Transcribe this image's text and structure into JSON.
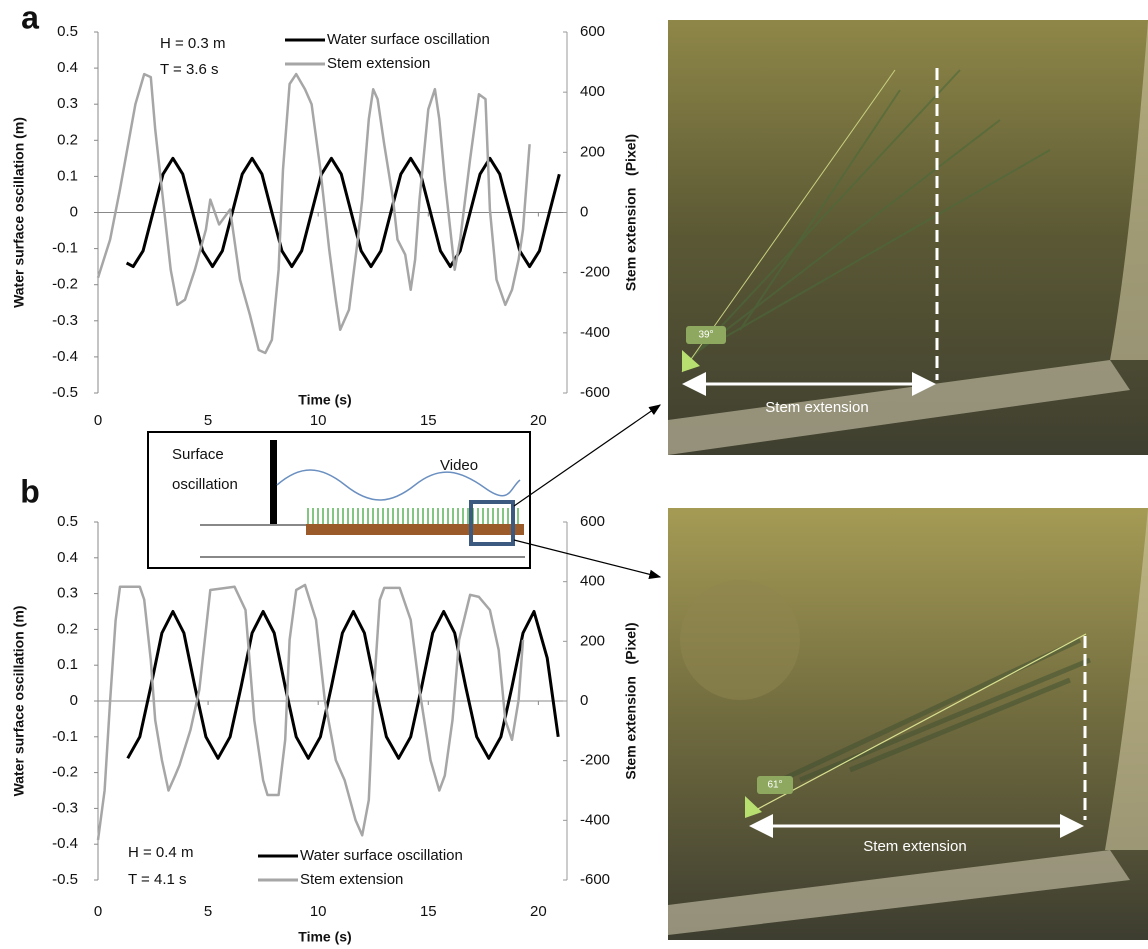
{
  "chart_data": [
    {
      "type": "line",
      "label": "a",
      "xlabel": "Time (s)",
      "ylabel": "Water surface oscillation (m)",
      "y2label": "Stem extension   (Pixel)",
      "annotations": [
        "H = 0.3 m",
        "T = 3.6 s"
      ],
      "legend": "top",
      "xlim": [
        0,
        21.3
      ],
      "xticks": [
        0,
        5,
        10,
        15,
        20
      ],
      "ylim": [
        -0.5,
        0.5
      ],
      "yticks": [
        -0.5,
        -0.4,
        -0.3,
        -0.2,
        -0.1,
        0,
        0.1,
        0.2,
        0.3,
        0.4,
        0.5
      ],
      "y2lim": [
        -600,
        600
      ],
      "y2ticks": [
        -600,
        -400,
        -200,
        0,
        200,
        400,
        600
      ],
      "series": [
        {
          "name": "Water surface oscillation",
          "color": "#000000",
          "x": [
            1.3,
            1.6,
            2.05,
            2.5,
            2.95,
            3.4,
            3.85,
            4.3,
            4.75,
            5.2,
            5.65,
            6.1,
            6.55,
            7,
            7.45,
            7.9,
            8.35,
            8.8,
            9.25,
            9.7,
            10.15,
            10.6,
            11.05,
            11.5,
            11.95,
            12.4,
            12.85,
            13.3,
            13.75,
            14.2,
            14.65,
            15.1,
            15.55,
            16,
            16.45,
            16.9,
            17.35,
            17.8,
            18.25,
            18.7,
            19.15,
            19.6,
            20.05,
            20.5,
            20.95
          ],
          "values": [
            -0.14,
            -0.15,
            -0.106,
            0,
            0.106,
            0.15,
            0.106,
            0,
            -0.106,
            -0.15,
            -0.106,
            0,
            0.106,
            0.15,
            0.106,
            0,
            -0.106,
            -0.15,
            -0.106,
            0,
            0.106,
            0.15,
            0.106,
            0,
            -0.106,
            -0.15,
            -0.106,
            0,
            0.106,
            0.15,
            0.106,
            0,
            -0.106,
            -0.15,
            -0.106,
            0,
            0.106,
            0.15,
            0.106,
            0,
            -0.106,
            -0.15,
            -0.106,
            0,
            0.106
          ]
        },
        {
          "name": "Stem extension",
          "color": "#a6a6a6",
          "axis": "y2",
          "x": [
            0,
            0.55,
            1.0,
            1.7,
            2.1,
            2.4,
            2.6,
            3.0,
            3.3,
            3.6,
            3.95,
            4.4,
            4.9,
            5.1,
            5.5,
            6.0,
            6.45,
            6.9,
            7.3,
            7.6,
            7.9,
            8.2,
            8.4,
            8.7,
            9.0,
            9.4,
            9.7,
            10.1,
            10.5,
            10.8,
            11.0,
            11.4,
            11.8,
            12.0,
            12.3,
            12.5,
            12.7,
            13.0,
            13.4,
            13.6,
            13.95,
            14.2,
            14.4,
            14.6,
            15.0,
            15.3,
            15.5,
            15.75,
            16.0,
            16.2,
            16.45,
            16.9,
            17.3,
            17.6,
            17.8,
            18.1,
            18.5,
            18.8,
            19.1,
            19.3,
            19.6
          ],
          "values": [
            -217,
            -90,
            77,
            360,
            460,
            450,
            277,
            10,
            -190,
            -307,
            -290,
            -190,
            -57,
            43,
            -40,
            10,
            -223,
            -340,
            -457,
            -467,
            -423,
            -190,
            143,
            427,
            460,
            410,
            360,
            143,
            -123,
            -290,
            -390,
            -323,
            -90,
            43,
            310,
            410,
            377,
            227,
            43,
            -90,
            -140,
            -257,
            -157,
            43,
            343,
            410,
            310,
            110,
            -57,
            -190,
            -90,
            177,
            393,
            377,
            10,
            -223,
            -307,
            -257,
            -157,
            -57,
            227
          ]
        }
      ]
    },
    {
      "type": "line",
      "label": "b",
      "xlabel": "Time (s)",
      "ylabel": "Water surface oscillation (m)",
      "y2label": "Stem extension   (Pixel)",
      "annotations": [
        "H = 0.4 m",
        "T = 4.1 s"
      ],
      "legend": "bottom",
      "xlim": [
        0,
        21.3
      ],
      "xticks": [
        0,
        5,
        10,
        15,
        20
      ],
      "ylim": [
        -0.5,
        0.5
      ],
      "yticks": [
        -0.5,
        -0.4,
        -0.3,
        -0.2,
        -0.1,
        0,
        0.1,
        0.2,
        0.3,
        0.4,
        0.5
      ],
      "y2lim": [
        -600,
        600
      ],
      "y2ticks": [
        -600,
        -400,
        -200,
        0,
        200,
        400,
        600
      ],
      "series": [
        {
          "name": "Water surface oscillation",
          "color": "#000000",
          "x": [
            1.35,
            1.9,
            2.4,
            2.9,
            3.4,
            3.9,
            4.4,
            4.9,
            5.45,
            6.0,
            6.5,
            7.0,
            7.5,
            8.0,
            8.5,
            9.0,
            9.55,
            10.1,
            10.6,
            11.1,
            11.6,
            12.1,
            12.6,
            13.1,
            13.65,
            14.2,
            14.7,
            15.2,
            15.7,
            16.2,
            16.7,
            17.2,
            17.75,
            18.3,
            18.8,
            19.3,
            19.8,
            20.4,
            20.9
          ],
          "values": [
            -0.16,
            -0.1,
            0.04,
            0.19,
            0.25,
            0.19,
            0.04,
            -0.1,
            -0.16,
            -0.1,
            0.04,
            0.19,
            0.25,
            0.19,
            0.04,
            -0.1,
            -0.16,
            -0.1,
            0.04,
            0.19,
            0.25,
            0.19,
            0.04,
            -0.1,
            -0.16,
            -0.1,
            0.04,
            0.19,
            0.25,
            0.19,
            0.04,
            -0.1,
            -0.16,
            -0.1,
            0.04,
            0.19,
            0.25,
            0.12,
            -0.1
          ]
        },
        {
          "name": "Stem extension",
          "color": "#a6a6a6",
          "axis": "y2",
          "x": [
            0,
            0.3,
            0.55,
            0.8,
            1.0,
            1.9,
            2.1,
            2.4,
            2.6,
            2.9,
            3.2,
            3.5,
            3.7,
            4.2,
            4.6,
            4.9,
            5.1,
            6.2,
            6.7,
            7.1,
            7.5,
            7.7,
            8.2,
            8.5,
            8.7,
            9.0,
            9.4,
            9.9,
            10.3,
            10.8,
            11.2,
            11.7,
            12.0,
            12.3,
            12.5,
            12.8,
            13.0,
            13.7,
            14.2,
            14.6,
            15.1,
            15.5,
            15.75,
            16.1,
            16.4,
            16.9,
            17.3,
            17.8,
            18.2,
            18.5,
            18.8,
            19.1,
            19.3
          ],
          "values": [
            -466,
            -300,
            0,
            270,
            383,
            383,
            340,
            137,
            -64,
            -198,
            -300,
            -250,
            -215,
            -97,
            37,
            238,
            372,
            383,
            305,
            -64,
            -265,
            -315,
            -315,
            -130,
            205,
            372,
            389,
            272,
            3,
            -198,
            -265,
            -400,
            -450,
            -332,
            3,
            339,
            379,
            379,
            272,
            37,
            -198,
            -300,
            -250,
            -64,
            205,
            356,
            349,
            305,
            171,
            -64,
            -130,
            3,
            205
          ]
        }
      ]
    }
  ],
  "schematic": {
    "surface_label": [
      "Surface",
      "oscillation"
    ],
    "video_label": "Video"
  },
  "photos": [
    {
      "angle": "39°",
      "label": "Stem extension"
    },
    {
      "angle": "61°",
      "label": "Stem extension"
    }
  ]
}
